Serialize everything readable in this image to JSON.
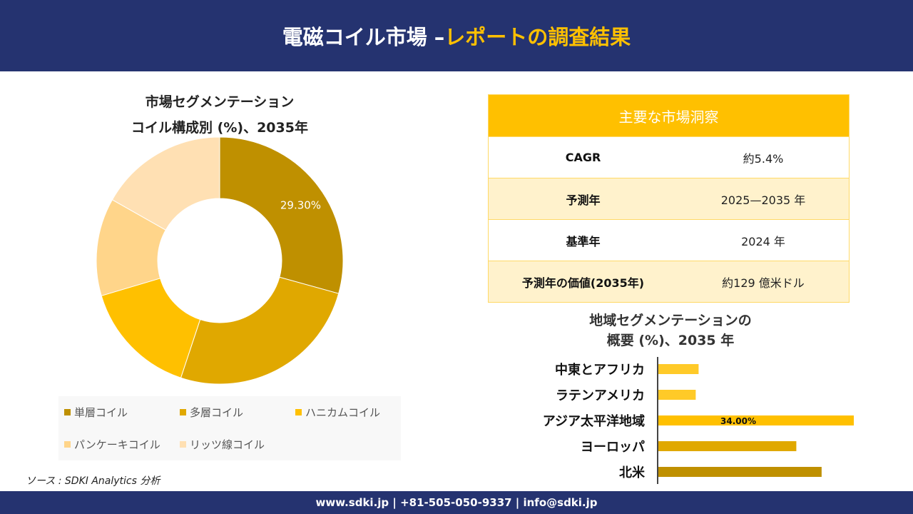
{
  "header": {
    "title_main": "電磁コイル市場 –",
    "title_accent": "レポートの調査結果"
  },
  "chart_data": [
    {
      "type": "pie",
      "donut": true,
      "title_line1": "市場セグメンテーション",
      "title_line2": "コイル構成別 (%)、2035年",
      "categories": [
        "単層コイル",
        "多層コイル",
        "ハニカムコイル",
        "パンケーキコイル",
        "リッツ線コイル"
      ],
      "values": [
        29.3,
        25.8,
        15.3,
        12.8,
        16.8
      ],
      "colors": [
        "#BF9000",
        "#E0A800",
        "#FFC000",
        "#FFD58A",
        "#FFE0B3"
      ],
      "data_labels": [
        "29.30%",
        "",
        "",
        "",
        ""
      ],
      "legend_position": "bottom"
    },
    {
      "type": "bar",
      "orientation": "horizontal",
      "title_line1": "地域セグメンテーションの",
      "title_line2": "概要 (%)、2035 年",
      "categories": [
        "中東とアフリカ",
        "ラテンアメリカ",
        "アジア太平洋地域",
        "ヨーロッパ",
        "北米"
      ],
      "values": [
        7.0,
        6.5,
        34.0,
        24.0,
        28.4
      ],
      "colors": [
        "#FFCA28",
        "#FFCA28",
        "#FFC000",
        "#E0A800",
        "#BF9000"
      ],
      "data_labels": [
        "",
        "",
        "34.00%",
        "",
        ""
      ],
      "xlim": [
        0,
        34
      ]
    }
  ],
  "insights": {
    "title": "主要な市場洞察",
    "rows": [
      {
        "key": "CAGR",
        "value": "約5.4%"
      },
      {
        "key": "予測年",
        "value": "2025—2035 年"
      },
      {
        "key": "基準年",
        "value": "2024 年"
      },
      {
        "key": "予測年の価値(2035年)",
        "value": "約129 億米ドル"
      }
    ]
  },
  "source": "ソース : SDKI Analytics 分析",
  "footer": "www.sdki.jp | +81-505-050-9337 | info@sdki.jp"
}
